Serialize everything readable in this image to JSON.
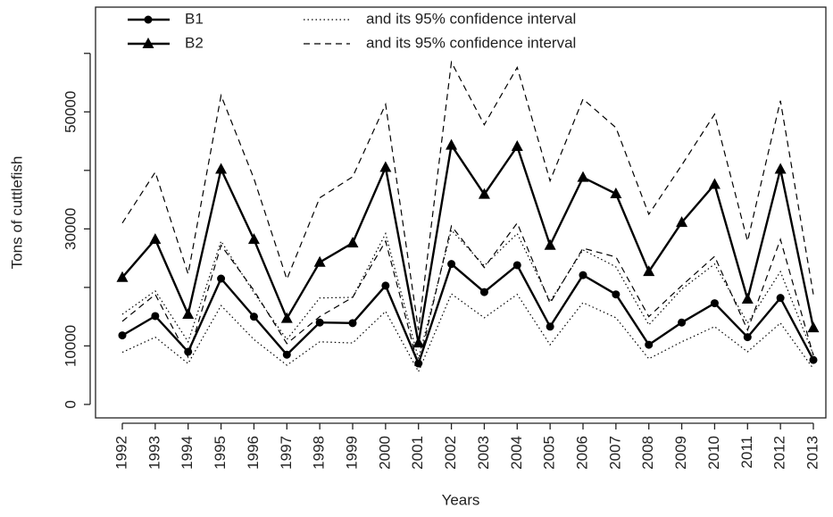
{
  "chart_data": {
    "type": "line",
    "xlabel": "Years",
    "ylabel": "Tons of cuttlefish",
    "categories": [
      1992,
      1993,
      1994,
      1995,
      1996,
      1997,
      1998,
      1999,
      2000,
      2001,
      2002,
      2003,
      2004,
      2005,
      2006,
      2007,
      2008,
      2009,
      2010,
      2011,
      2012,
      2013
    ],
    "ylim": [
      -2300,
      67900
    ],
    "yticks": [
      0,
      10000,
      {
        "value": 20000,
        "label": null
      },
      30000,
      {
        "value": 40000,
        "label": null
      },
      50000,
      {
        "value": 60000,
        "label": null
      }
    ],
    "grid": false,
    "legend": "top-left",
    "series": [
      {
        "name": "B1",
        "color": "#000000",
        "marker": "circle",
        "dash": "solid",
        "values": [
          11800,
          15100,
          9000,
          21500,
          15000,
          8500,
          14000,
          13900,
          20300,
          7000,
          24000,
          19200,
          23800,
          13300,
          22100,
          18800,
          10200,
          14000,
          17300,
          11500,
          18200,
          7600
        ],
        "ci": {
          "name": "and its 95% confidence interval",
          "dash": "dotted",
          "lower": [
            8900,
            11500,
            7000,
            16900,
            11100,
            6700,
            10700,
            10500,
            15900,
            5600,
            18900,
            14800,
            18800,
            10200,
            17400,
            14800,
            7800,
            10700,
            13300,
            9000,
            13900,
            6100
          ],
          "upper": [
            15400,
            19400,
            10700,
            27900,
            19100,
            11100,
            18200,
            18300,
            29200,
            7800,
            29800,
            23700,
            29200,
            17600,
            26400,
            23500,
            13600,
            19700,
            24000,
            13900,
            22700,
            8500
          ]
        }
      },
      {
        "name": "B2",
        "color": "#000000",
        "marker": "triangle",
        "dash": "solid",
        "values": [
          21700,
          28200,
          15400,
          40200,
          28200,
          14700,
          24300,
          27600,
          40500,
          10500,
          44300,
          35900,
          44100,
          27200,
          38800,
          36000,
          22700,
          31100,
          37600,
          18000,
          40200,
          13100
        ],
        "ci": {
          "name": "and its 95% confidence interval",
          "dash": "dashed",
          "lower": [
            14200,
            18800,
            8100,
            27200,
            19500,
            10400,
            15000,
            18300,
            27900,
            6600,
            30500,
            23400,
            31000,
            17300,
            26700,
            25200,
            15000,
            20300,
            25300,
            12700,
            28200,
            8400
          ],
          "upper": [
            31000,
            39700,
            22300,
            52800,
            38600,
            21400,
            35300,
            38900,
            51300,
            12700,
            58500,
            47800,
            57600,
            38200,
            52200,
            47300,
            32500,
            40900,
            49600,
            27900,
            51900,
            18800
          ]
        }
      }
    ]
  }
}
